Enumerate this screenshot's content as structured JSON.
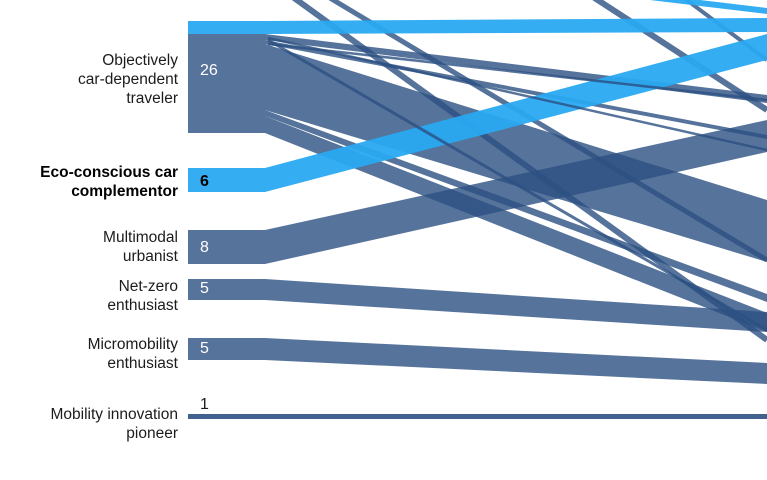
{
  "colors": {
    "flow_dark": "#2c5082",
    "flow_highlight": "#29a9f1",
    "label_text": "#1c1c1c",
    "highlight_text": "#000000"
  },
  "segments": [
    {
      "id": "objectively-car-dependent-traveler",
      "label": "Objectively\ncar-dependent\ntraveler",
      "value": "26",
      "highlighted": false
    },
    {
      "id": "eco-conscious-car-complementor",
      "label": "Eco-conscious car\ncomplementor",
      "value": "6",
      "highlighted": true
    },
    {
      "id": "multimodal-urbanist",
      "label": "Multimodal\nurbanist",
      "value": "8",
      "highlighted": false
    },
    {
      "id": "net-zero-enthusiast",
      "label": "Net-zero\nenthusiast",
      "value": "5",
      "highlighted": false
    },
    {
      "id": "micromobility-enthusiast",
      "label": "Micromobility\nenthusiast",
      "value": "5",
      "highlighted": false
    },
    {
      "id": "mobility-innovation-pioneer",
      "label": "Mobility innovation\npioneer",
      "value": "1",
      "highlighted": false
    }
  ]
}
